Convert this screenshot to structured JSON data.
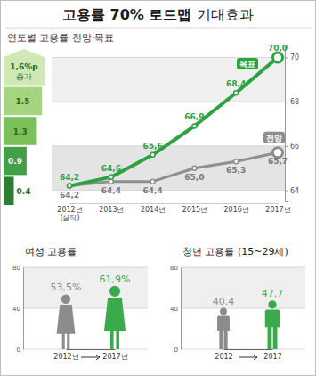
{
  "chart_data": [
    {
      "type": "line",
      "title": "고용률 70% 로드맵 기대효과",
      "subtitle": "연도별 고용률 전망·목표",
      "categories": [
        "2012년\n(실적)",
        "2013년",
        "2014년",
        "2015년",
        "2016년",
        "2017년"
      ],
      "series": [
        {
          "name": "목표",
          "color": "#2ca33e",
          "marker": "circle",
          "values": [
            64.2,
            64.6,
            65.6,
            66.9,
            68.4,
            70.0
          ],
          "value_labels": [
            "64,2",
            "64,6",
            "65,6",
            "66,9",
            "68,4",
            "70,0"
          ]
        },
        {
          "name": "전망",
          "color": "#8e8e8e",
          "marker": "circle",
          "values": [
            64.2,
            64.4,
            64.4,
            65.0,
            65.3,
            65.7
          ],
          "value_labels": [
            "64,2",
            "64,4",
            "64,4",
            "65,0",
            "65,3",
            "65,7"
          ]
        }
      ],
      "ylim": [
        63.5,
        70.5
      ],
      "yticks": [
        64,
        66,
        68,
        70
      ],
      "grid": true,
      "data_labels": true,
      "increase": {
        "values": [
          0.4,
          0.9,
          1.3,
          1.5,
          1.6
        ],
        "value_labels": [
          "0.4",
          "0.9",
          "1.3",
          "1.5",
          "1,6%p"
        ],
        "label": "증가",
        "colors": [
          "#2e7d32",
          "#43a047",
          "#7cc05a",
          "#a5d67f",
          "#cfe8b4"
        ]
      }
    },
    {
      "type": "bar",
      "title": "여성 고용률",
      "categories": [
        "2012년",
        "2017년"
      ],
      "values": [
        53.5,
        61.9
      ],
      "value_labels": [
        "53,5%",
        "61,9%"
      ],
      "colors": [
        "#8c8c8c",
        "#3aaa4a"
      ],
      "marker": "woman",
      "ylim": [
        0,
        80
      ],
      "yticks": [
        0,
        40,
        80
      ],
      "grid": true,
      "data_labels": true
    },
    {
      "type": "bar",
      "title": "청년 고용률 (15~29세)",
      "categories": [
        "2012",
        "2017"
      ],
      "values": [
        40.4,
        47.7
      ],
      "colors": [
        "#8c8c8c",
        "#3aaa4a"
      ],
      "marker": "man",
      "ylim": [
        0,
        80
      ],
      "yticks": [
        0,
        40,
        80
      ],
      "grid": true,
      "data_labels": true
    }
  ]
}
